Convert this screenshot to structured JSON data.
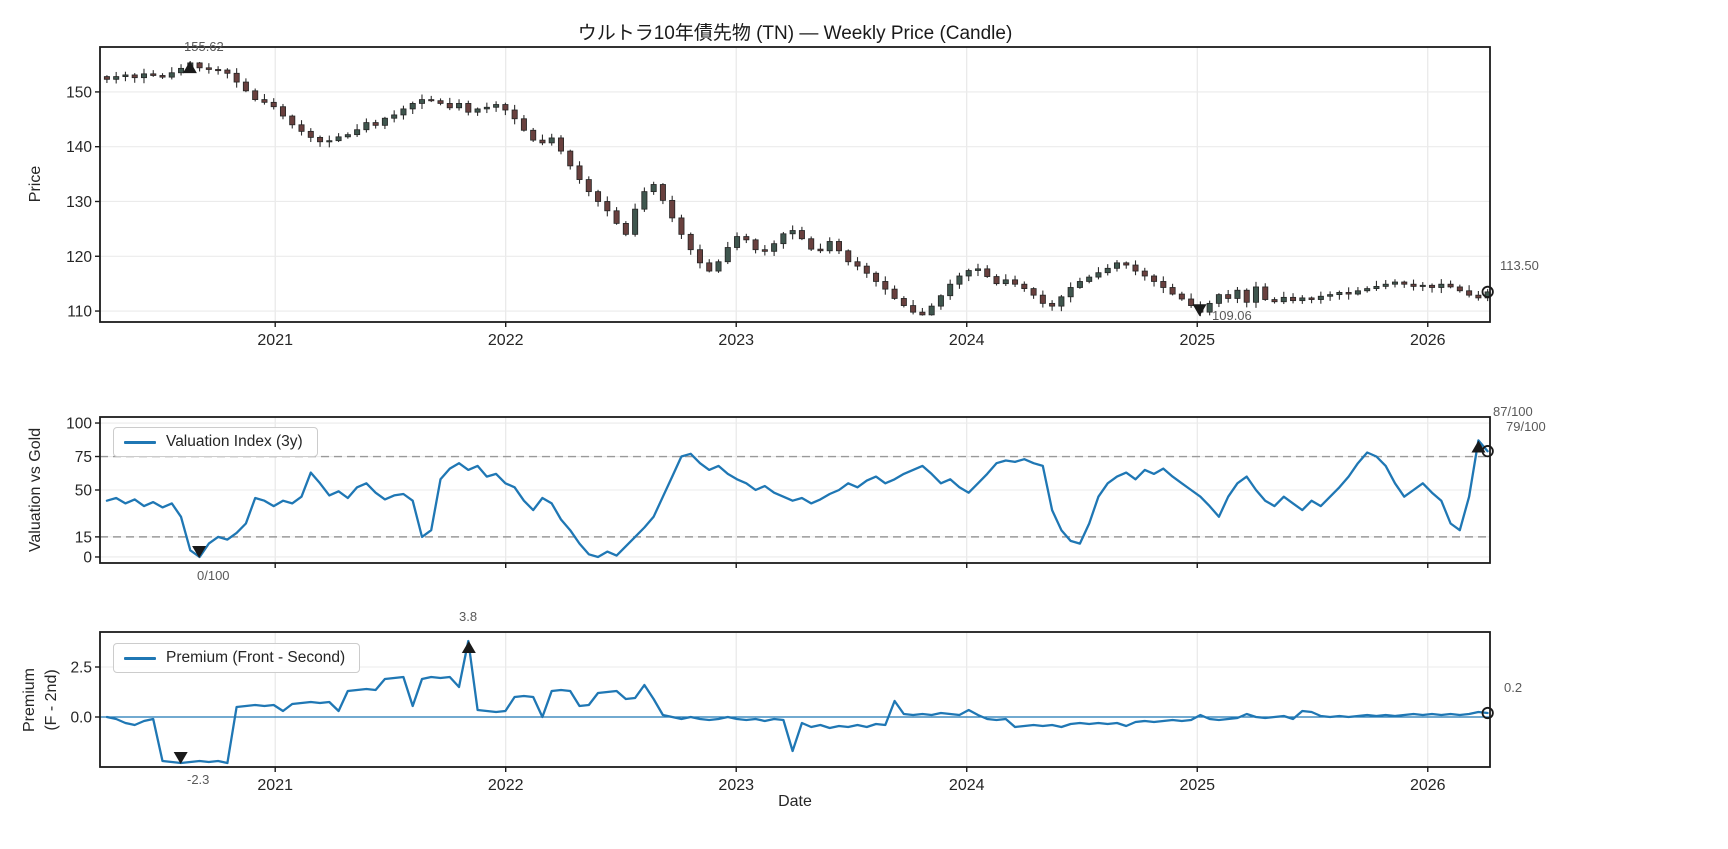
{
  "figure": {
    "xlabel": "Date",
    "xticklabels": [
      "2021",
      "2022",
      "2023",
      "2024",
      "2025",
      "2026"
    ],
    "xticks": [
      2021,
      2022,
      2023,
      2024,
      2025,
      2026
    ],
    "background": "#ffffff",
    "accent_blue": "#1f77b4",
    "annotation_color": "#595959"
  },
  "chart_data": [
    {
      "id": "price",
      "type": "candlestick",
      "title": "ウルトラ10年債先物 (TN) — Weekly Price (Candle)",
      "ylabel": "Price",
      "yticks": [
        110,
        120,
        130,
        140,
        150
      ],
      "ylim": [
        108.0,
        158.2
      ],
      "xlim": [
        2020.24,
        2026.27
      ],
      "x_start": 2020.27,
      "x_step": 0.0402,
      "close": [
        152.3,
        152.8,
        153.1,
        152.6,
        153.3,
        153.0,
        152.7,
        153.5,
        154.3,
        155.3,
        154.4,
        154.1,
        154.0,
        153.4,
        151.8,
        150.2,
        148.6,
        148.1,
        147.3,
        145.6,
        144.0,
        142.8,
        141.7,
        140.9,
        141.1,
        141.8,
        142.2,
        143.1,
        144.4,
        143.9,
        145.2,
        145.8,
        146.9,
        147.9,
        148.6,
        148.4,
        147.9,
        147.1,
        147.9,
        146.3,
        146.9,
        147.2,
        147.7,
        146.7,
        145.1,
        143.0,
        141.2,
        140.7,
        141.6,
        139.2,
        136.5,
        134.0,
        131.8,
        130.0,
        128.3,
        126.0,
        124.0,
        128.6,
        131.8,
        133.1,
        130.2,
        127.0,
        124.0,
        121.2,
        118.8,
        117.3,
        119.0,
        121.6,
        123.6,
        123.0,
        121.2,
        120.9,
        122.3,
        124.1,
        124.7,
        123.2,
        121.3,
        121.0,
        122.7,
        121.0,
        119.0,
        118.2,
        116.9,
        115.4,
        114.0,
        112.3,
        111.0,
        109.8,
        109.3,
        110.9,
        112.8,
        114.9,
        116.4,
        117.4,
        117.7,
        116.3,
        115.0,
        115.7,
        114.9,
        114.1,
        112.9,
        111.4,
        110.9,
        112.6,
        114.3,
        115.4,
        116.2,
        117.0,
        117.8,
        118.8,
        118.4,
        117.3,
        116.4,
        115.4,
        114.3,
        113.1,
        112.2,
        111.0,
        109.8,
        111.4,
        113.0,
        112.3,
        113.8,
        111.6,
        114.4,
        112.1,
        111.7,
        112.5,
        111.9,
        112.4,
        112.1,
        112.7,
        113.0,
        113.4,
        113.1,
        113.7,
        114.1,
        114.5,
        114.9,
        115.3,
        114.9,
        114.5,
        114.7,
        114.3,
        114.9,
        114.4,
        113.7,
        112.9,
        112.4,
        113.5
      ],
      "hi_idx": 9,
      "lo_idx": 118,
      "colors": {
        "up_body": "#3f564e",
        "down_body": "#69403e",
        "wick": "#2e2e2e",
        "edge": "#242424"
      },
      "annotations": {
        "max": {
          "t": 2020.63,
          "v": 155.62,
          "label": "155.62"
        },
        "min": {
          "t": 2025.01,
          "v": 109.06,
          "label": "109.06"
        },
        "last": {
          "t": 2026.26,
          "v": 113.5,
          "label": "113.50"
        }
      }
    },
    {
      "id": "valuation",
      "type": "line",
      "ylabel": "Valuation vs Gold",
      "legend": "Valuation Index (3y)",
      "yticks": [
        0,
        15,
        50,
        75,
        100
      ],
      "hlines": [
        15,
        75
      ],
      "ylim": [
        -4.5,
        104.5
      ],
      "values": [
        42,
        44,
        40,
        43,
        38,
        41,
        37,
        40,
        30,
        5,
        0,
        10,
        15,
        13,
        18,
        25,
        44,
        42,
        38,
        42,
        40,
        45,
        63,
        55,
        46,
        49,
        44,
        52,
        55,
        48,
        43,
        46,
        47,
        42,
        15,
        20,
        58,
        66,
        70,
        65,
        68,
        60,
        62,
        55,
        52,
        42,
        35,
        44,
        40,
        28,
        20,
        10,
        2,
        0,
        4,
        1,
        8,
        15,
        22,
        30,
        45,
        60,
        75,
        77,
        70,
        65,
        68,
        62,
        58,
        55,
        50,
        53,
        48,
        45,
        42,
        44,
        40,
        43,
        47,
        50,
        55,
        52,
        57,
        60,
        55,
        58,
        62,
        65,
        68,
        62,
        55,
        58,
        52,
        48,
        55,
        62,
        70,
        72,
        71,
        73,
        70,
        68,
        35,
        20,
        12,
        10,
        25,
        45,
        55,
        60,
        63,
        58,
        65,
        62,
        66,
        60,
        55,
        50,
        45,
        38,
        30,
        45,
        55,
        60,
        50,
        42,
        38,
        45,
        40,
        35,
        42,
        38,
        45,
        52,
        60,
        70,
        78,
        75,
        68,
        55,
        45,
        50,
        55,
        48,
        42,
        25,
        20,
        45,
        87,
        79
      ],
      "annotations": {
        "min": {
          "t": 2020.67,
          "v": 0,
          "label": "0/100"
        },
        "max": {
          "t": 2026.22,
          "v": 87,
          "label": "87/100"
        },
        "last": {
          "t": 2026.26,
          "v": 79,
          "label": "79/100"
        }
      }
    },
    {
      "id": "premium",
      "type": "line",
      "ylabel_lines": [
        "Premium",
        "(F - 2nd)"
      ],
      "legend": "Premium (Front - Second)",
      "yticks": [
        0.0,
        2.5
      ],
      "ytick_labels": [
        "0.0",
        "2.5"
      ],
      "ylim": [
        -2.5,
        4.25
      ],
      "zero_line": true,
      "xlabel": "Date",
      "values": [
        0.0,
        -0.1,
        -0.3,
        -0.4,
        -0.2,
        -0.1,
        -2.2,
        -2.25,
        -2.3,
        -2.25,
        -2.2,
        -2.25,
        -2.2,
        -2.3,
        0.5,
        0.55,
        0.6,
        0.55,
        0.6,
        0.3,
        0.65,
        0.7,
        0.75,
        0.7,
        0.75,
        0.3,
        1.3,
        1.35,
        1.4,
        1.35,
        1.9,
        1.95,
        2.0,
        0.55,
        1.9,
        2.0,
        1.95,
        2.0,
        1.5,
        3.8,
        0.35,
        0.3,
        0.25,
        0.3,
        1.0,
        1.05,
        1.0,
        0.0,
        1.3,
        1.35,
        1.3,
        0.55,
        0.6,
        1.2,
        1.25,
        1.3,
        0.9,
        0.95,
        1.6,
        0.9,
        0.1,
        0.0,
        -0.1,
        0.0,
        -0.1,
        -0.15,
        -0.1,
        0.0,
        -0.1,
        -0.15,
        -0.1,
        -0.2,
        -0.1,
        -0.15,
        -1.7,
        -0.3,
        -0.5,
        -0.4,
        -0.55,
        -0.45,
        -0.5,
        -0.4,
        -0.5,
        -0.35,
        -0.4,
        0.8,
        0.15,
        0.1,
        0.15,
        0.1,
        0.2,
        0.15,
        0.1,
        0.35,
        0.1,
        -0.1,
        -0.15,
        -0.1,
        -0.5,
        -0.45,
        -0.4,
        -0.45,
        -0.4,
        -0.5,
        -0.35,
        -0.3,
        -0.35,
        -0.3,
        -0.35,
        -0.3,
        -0.45,
        -0.25,
        -0.2,
        -0.25,
        -0.2,
        -0.15,
        -0.2,
        -0.15,
        0.1,
        -0.1,
        -0.15,
        -0.1,
        -0.05,
        0.15,
        0.0,
        -0.05,
        0.0,
        0.05,
        -0.1,
        0.3,
        0.25,
        0.05,
        0.0,
        0.05,
        0.0,
        0.05,
        0.1,
        0.05,
        0.1,
        0.05,
        0.1,
        0.15,
        0.1,
        0.15,
        0.1,
        0.15,
        0.1,
        0.15,
        0.25,
        0.2
      ],
      "annotations": {
        "min": {
          "t": 2020.59,
          "v": -2.3,
          "label": "-2.3"
        },
        "max": {
          "t": 2021.84,
          "v": 3.8,
          "label": "3.8"
        },
        "last": {
          "t": 2026.26,
          "v": 0.2,
          "label": "0.2"
        }
      }
    }
  ]
}
